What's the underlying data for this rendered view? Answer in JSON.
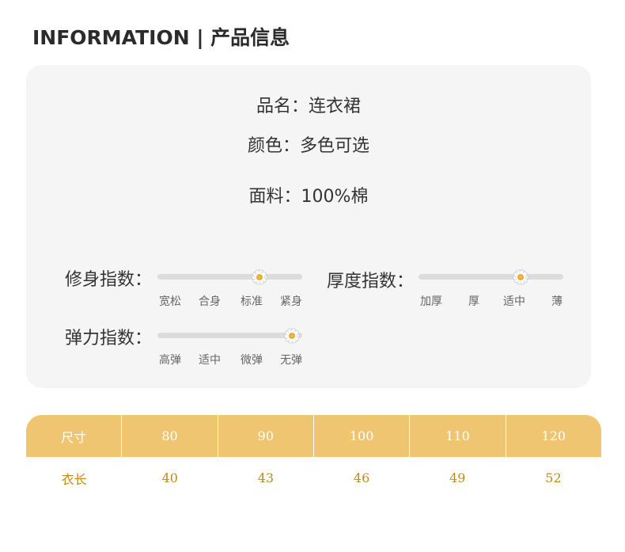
{
  "header": {
    "title": "INFORMATION | 产品信息"
  },
  "info": {
    "name": "品名：连衣裙",
    "color": "颜色：多色可选",
    "fabric": "面料：100%棉"
  },
  "scales": {
    "fit": {
      "label": "修身指数：",
      "ticks": [
        "宽松",
        "合身",
        "标准",
        "紧身"
      ],
      "level": 0.67
    },
    "thickness": {
      "label": "厚度指数：",
      "ticks": [
        "加厚",
        "厚",
        "适中",
        "薄"
      ],
      "level": 0.67
    },
    "elasticity": {
      "label": "弹力指数：",
      "ticks": [
        "高弹",
        "适中",
        "微弹",
        "无弹"
      ],
      "level": 1.0
    }
  },
  "colors": {
    "accent": "#f0c572",
    "accent_text": "#c28a18",
    "card_bg": "#f5f5f5",
    "track": "#dcdcdc"
  },
  "size_table": {
    "header": [
      "尺寸",
      "80",
      "90",
      "100",
      "110",
      "120"
    ],
    "rows": [
      [
        "衣长",
        "40",
        "43",
        "46",
        "49",
        "52"
      ]
    ]
  }
}
